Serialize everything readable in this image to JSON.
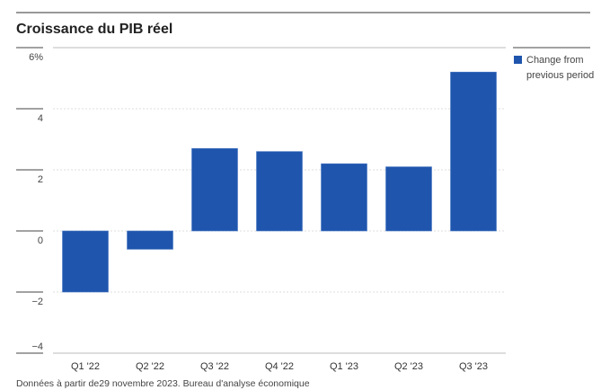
{
  "chart_data": {
    "type": "bar",
    "title": "Croissance du PIB réel",
    "categories": [
      "Q1 '22",
      "Q2 '22",
      "Q3 '22",
      "Q4 '22",
      "Q1 '23",
      "Q2 '23",
      "Q3 '23"
    ],
    "series": [
      {
        "name": "Change from previous period",
        "values": [
          -2.0,
          -0.6,
          2.7,
          2.6,
          2.2,
          2.1,
          5.2
        ],
        "color": "#1f55ad"
      }
    ],
    "legend_lines": [
      "Change from",
      "previous period"
    ],
    "ylim": [
      -4,
      6
    ],
    "yticks": [
      6,
      4,
      2,
      0,
      -2,
      -4
    ],
    "ytick_labels": [
      "6%",
      "4",
      "2",
      "0",
      "−2",
      "−4"
    ],
    "xlabel": "",
    "ylabel": "",
    "grid": true,
    "legend_position": "top-right",
    "footnote": "Données à partir de29 novembre 2023. Bureau d'analyse économique"
  }
}
